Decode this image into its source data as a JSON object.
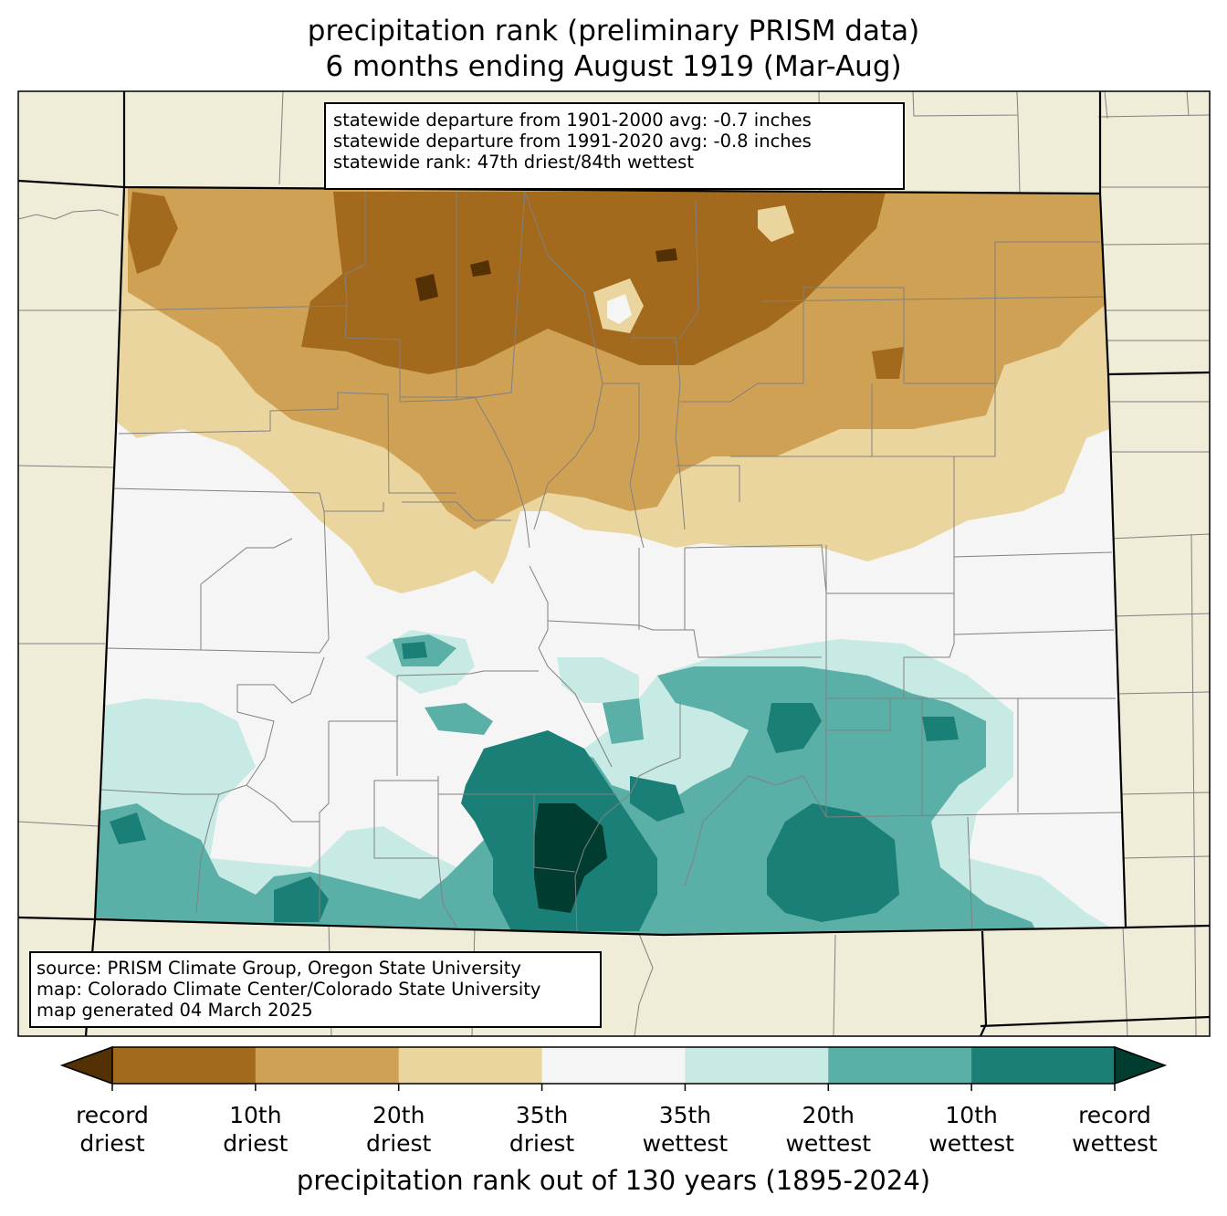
{
  "title": {
    "line1": "precipitation rank (preliminary PRISM data)",
    "line2": "6 months ending August 1919 (Mar-Aug)"
  },
  "stats": {
    "line1": "statewide departure from 1901-2000 avg: -0.7 inches",
    "line2": "statewide departure from 1991-2020 avg: -0.8 inches",
    "line3": "statewide rank: 47th driest/84th wettest"
  },
  "source": {
    "line1": "source: PRISM Climate Group, Oregon State University",
    "line2": "map: Colorado Climate Center/Colorado State University",
    "line3": "map generated 04 March 2025"
  },
  "colorbar": {
    "label": "precipitation rank out of 130 years (1895-2024)",
    "under_color": "#543005",
    "over_color": "#003c30",
    "bins": [
      "#a36a1e",
      "#cfa155",
      "#ebd59e",
      "#f4f5f4",
      "#c7eae4",
      "#5ab0a6",
      "#1a7f77"
    ],
    "ticks": [
      {
        "line1": "record",
        "line2": "driest"
      },
      {
        "line1": "10th",
        "line2": "driest"
      },
      {
        "line1": "20th",
        "line2": "driest"
      },
      {
        "line1": "35th",
        "line2": "driest"
      },
      {
        "line1": "35th",
        "line2": "wettest"
      },
      {
        "line1": "20th",
        "line2": "wettest"
      },
      {
        "line1": "10th",
        "line2": "wettest"
      },
      {
        "line1": "record",
        "line2": "wettest"
      }
    ]
  },
  "map_colors": {
    "land_background": "#efecd8",
    "county_lines": "#808080",
    "state_lines": "#000000"
  }
}
